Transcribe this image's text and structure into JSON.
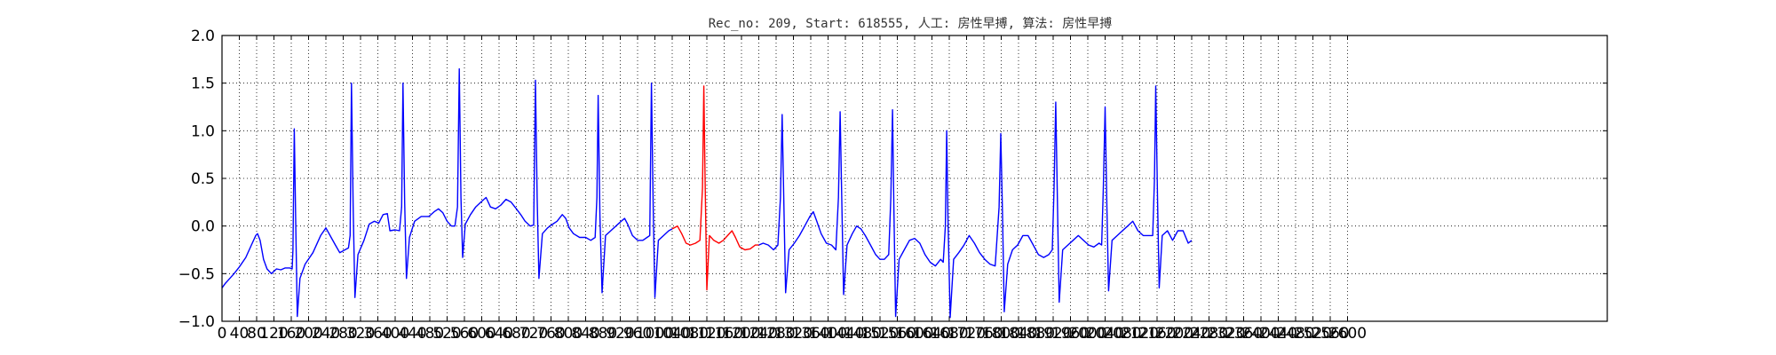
{
  "chart_data": {
    "type": "line",
    "title": "Rec_no: 209, Start: 618555, 人工: 房性早搏, 算法: 房性早搏",
    "xlabel": "",
    "ylabel": "",
    "xlim": [
      0,
      3200
    ],
    "ylim": [
      -1.0,
      2.0
    ],
    "grid": true,
    "yticks": [
      "−1.0",
      "−0.5",
      "0.0",
      "0.5",
      "1.0",
      "1.5",
      "2.0"
    ],
    "ytick_values": [
      -1.0,
      -0.5,
      0.0,
      0.5,
      1.0,
      1.5,
      2.0
    ],
    "xticks": [
      "0",
      "40",
      "80",
      "120",
      "160",
      "200",
      "240",
      "280",
      "320",
      "360",
      "400",
      "440",
      "480",
      "520",
      "560",
      "600",
      "640",
      "680",
      "720",
      "760",
      "800",
      "840",
      "880",
      "920",
      "960",
      "1000",
      "1040",
      "1080",
      "1120",
      "1160",
      "1200",
      "1240",
      "1280",
      "1320",
      "1360",
      "1400",
      "1440",
      "1480",
      "1520",
      "1560",
      "1600",
      "1640",
      "1680",
      "1720",
      "1760",
      "1800",
      "1840",
      "1880",
      "1920",
      "1960",
      "2000",
      "2040",
      "2080",
      "2120",
      "2160",
      "2200",
      "2240",
      "2280",
      "2320",
      "2360",
      "2400",
      "2440",
      "2480",
      "2520",
      "2560",
      "2600"
    ],
    "xtick_values": [
      0,
      40,
      80,
      120,
      160,
      200,
      240,
      280,
      320,
      360,
      400,
      440,
      480,
      520,
      560,
      600,
      640,
      680,
      720,
      760,
      800,
      840,
      880,
      920,
      960,
      1000,
      1040,
      1080,
      1120,
      1160,
      1200,
      1240,
      1280,
      1320,
      1360,
      1400,
      1440,
      1480,
      1520,
      1560,
      1600,
      1640,
      1680,
      1720,
      1760,
      1800,
      1840,
      1880,
      1920,
      1960,
      2000,
      2040,
      2080,
      2120,
      2160,
      2200,
      2240,
      2280,
      2320,
      2360,
      2400,
      2440,
      2480,
      2520,
      2560,
      2600
    ],
    "series": [
      {
        "color": "#0000ff",
        "points": [
          [
            0,
            -0.65
          ],
          [
            8,
            -0.6
          ],
          [
            18,
            -0.55
          ],
          [
            28,
            -0.5
          ],
          [
            40,
            -0.43
          ],
          [
            55,
            -0.33
          ],
          [
            68,
            -0.2
          ],
          [
            78,
            -0.1
          ],
          [
            82,
            -0.08
          ],
          [
            88,
            -0.15
          ],
          [
            96,
            -0.35
          ],
          [
            104,
            -0.45
          ],
          [
            114,
            -0.5
          ],
          [
            126,
            -0.45
          ],
          [
            136,
            -0.46
          ],
          [
            146,
            -0.44
          ],
          [
            156,
            -0.44
          ],
          [
            162,
            -0.45
          ],
          [
            164,
            -0.25
          ],
          [
            167,
            1.02
          ],
          [
            170,
            0.1
          ],
          [
            174,
            -0.95
          ],
          [
            180,
            -0.55
          ],
          [
            192,
            -0.4
          ],
          [
            210,
            -0.28
          ],
          [
            228,
            -0.1
          ],
          [
            240,
            -0.02
          ],
          [
            252,
            -0.12
          ],
          [
            262,
            -0.2
          ],
          [
            272,
            -0.28
          ],
          [
            284,
            -0.25
          ],
          [
            292,
            -0.23
          ],
          [
            296,
            -0.1
          ],
          [
            299,
            1.5
          ],
          [
            303,
            0.2
          ],
          [
            307,
            -0.75
          ],
          [
            314,
            -0.3
          ],
          [
            328,
            -0.15
          ],
          [
            340,
            0.02
          ],
          [
            352,
            0.05
          ],
          [
            362,
            0.03
          ],
          [
            372,
            0.12
          ],
          [
            382,
            0.13
          ],
          [
            388,
            -0.05
          ],
          [
            400,
            -0.04
          ],
          [
            410,
            -0.05
          ],
          [
            415,
            0.2
          ],
          [
            418,
            1.5
          ],
          [
            422,
            0.25
          ],
          [
            426,
            -0.55
          ],
          [
            433,
            -0.12
          ],
          [
            445,
            0.05
          ],
          [
            460,
            0.1
          ],
          [
            478,
            0.1
          ],
          [
            490,
            0.15
          ],
          [
            500,
            0.18
          ],
          [
            510,
            0.14
          ],
          [
            520,
            0.05
          ],
          [
            530,
            0.0
          ],
          [
            538,
            0.0
          ],
          [
            544,
            0.2
          ],
          [
            548,
            1.65
          ],
          [
            552,
            0.3
          ],
          [
            556,
            -0.33
          ],
          [
            562,
            0.02
          ],
          [
            574,
            0.12
          ],
          [
            586,
            0.2
          ],
          [
            598,
            0.25
          ],
          [
            610,
            0.3
          ],
          [
            620,
            0.2
          ],
          [
            632,
            0.18
          ],
          [
            644,
            0.22
          ],
          [
            656,
            0.28
          ],
          [
            668,
            0.25
          ],
          [
            680,
            0.18
          ],
          [
            690,
            0.12
          ],
          [
            700,
            0.05
          ],
          [
            712,
            0.0
          ],
          [
            720,
            0.01
          ],
          [
            724,
            1.53
          ],
          [
            728,
            0.3
          ],
          [
            732,
            -0.55
          ],
          [
            740,
            -0.08
          ],
          [
            752,
            -0.02
          ],
          [
            764,
            0.02
          ],
          [
            774,
            0.05
          ],
          [
            786,
            0.12
          ],
          [
            794,
            0.08
          ],
          [
            802,
            -0.02
          ],
          [
            812,
            -0.08
          ],
          [
            826,
            -0.12
          ],
          [
            840,
            -0.12
          ],
          [
            852,
            -0.15
          ],
          [
            862,
            -0.12
          ],
          [
            866,
            0.3
          ],
          [
            869,
            1.37
          ],
          [
            873,
            0.1
          ],
          [
            878,
            -0.7
          ],
          [
            886,
            -0.1
          ],
          [
            898,
            -0.05
          ],
          [
            910,
            0.0
          ],
          [
            922,
            0.05
          ],
          [
            930,
            0.08
          ],
          [
            938,
            0.01
          ],
          [
            948,
            -0.1
          ],
          [
            960,
            -0.15
          ],
          [
            972,
            -0.15
          ],
          [
            982,
            -0.12
          ],
          [
            988,
            -0.1
          ],
          [
            992,
            1.5
          ],
          [
            996,
            0.2
          ],
          [
            1000,
            -0.75
          ],
          [
            1008,
            -0.15
          ],
          [
            1020,
            -0.1
          ],
          [
            1032,
            -0.05
          ],
          [
            1040,
            -0.03
          ]
        ]
      },
      {
        "color": "#ff0000",
        "points": [
          [
            1040,
            -0.03
          ],
          [
            1052,
            0.0
          ],
          [
            1062,
            -0.08
          ],
          [
            1072,
            -0.18
          ],
          [
            1082,
            -0.2
          ],
          [
            1094,
            -0.18
          ],
          [
            1104,
            -0.15
          ],
          [
            1110,
            0.4
          ],
          [
            1113,
            1.47
          ],
          [
            1116,
            0.5
          ],
          [
            1120,
            -0.67
          ],
          [
            1126,
            -0.1
          ],
          [
            1136,
            -0.15
          ],
          [
            1148,
            -0.18
          ],
          [
            1158,
            -0.15
          ],
          [
            1168,
            -0.1
          ],
          [
            1178,
            -0.05
          ],
          [
            1186,
            -0.12
          ],
          [
            1196,
            -0.22
          ],
          [
            1208,
            -0.25
          ],
          [
            1220,
            -0.24
          ],
          [
            1232,
            -0.2
          ],
          [
            1240,
            -0.2
          ]
        ]
      },
      {
        "color": "#0000ff",
        "points": [
          [
            1240,
            -0.2
          ],
          [
            1250,
            -0.18
          ],
          [
            1262,
            -0.2
          ],
          [
            1274,
            -0.25
          ],
          [
            1284,
            -0.2
          ],
          [
            1290,
            0.3
          ],
          [
            1294,
            1.17
          ],
          [
            1298,
            0.2
          ],
          [
            1302,
            -0.7
          ],
          [
            1310,
            -0.25
          ],
          [
            1322,
            -0.18
          ],
          [
            1334,
            -0.1
          ],
          [
            1346,
            0.0
          ],
          [
            1358,
            0.1
          ],
          [
            1366,
            0.15
          ],
          [
            1374,
            0.05
          ],
          [
            1384,
            -0.08
          ],
          [
            1396,
            -0.18
          ],
          [
            1408,
            -0.2
          ],
          [
            1418,
            -0.25
          ],
          [
            1424,
            0.3
          ],
          [
            1428,
            1.2
          ],
          [
            1432,
            0.2
          ],
          [
            1436,
            -0.72
          ],
          [
            1444,
            -0.2
          ],
          [
            1456,
            -0.08
          ],
          [
            1466,
            0.0
          ],
          [
            1476,
            -0.03
          ],
          [
            1486,
            -0.1
          ],
          [
            1498,
            -0.2
          ],
          [
            1510,
            -0.3
          ],
          [
            1520,
            -0.35
          ],
          [
            1530,
            -0.35
          ],
          [
            1540,
            -0.3
          ],
          [
            1545,
            0.3
          ],
          [
            1549,
            1.22
          ],
          [
            1552,
            0.2
          ],
          [
            1556,
            -0.95
          ],
          [
            1564,
            -0.35
          ],
          [
            1576,
            -0.25
          ],
          [
            1588,
            -0.15
          ],
          [
            1600,
            -0.13
          ],
          [
            1612,
            -0.18
          ],
          [
            1624,
            -0.3
          ],
          [
            1636,
            -0.38
          ],
          [
            1648,
            -0.42
          ],
          [
            1660,
            -0.35
          ],
          [
            1666,
            -0.38
          ],
          [
            1671,
            0.0
          ],
          [
            1674,
            1.0
          ],
          [
            1677,
            0.1
          ],
          [
            1682,
            -0.96
          ],
          [
            1690,
            -0.35
          ],
          [
            1702,
            -0.28
          ],
          [
            1714,
            -0.2
          ],
          [
            1726,
            -0.1
          ],
          [
            1738,
            -0.18
          ],
          [
            1750,
            -0.28
          ],
          [
            1762,
            -0.35
          ],
          [
            1774,
            -0.4
          ],
          [
            1786,
            -0.42
          ],
          [
            1795,
            0.2
          ],
          [
            1799,
            0.97
          ],
          [
            1803,
            0.1
          ],
          [
            1807,
            -0.9
          ],
          [
            1815,
            -0.4
          ],
          [
            1826,
            -0.25
          ],
          [
            1838,
            -0.2
          ],
          [
            1850,
            -0.1
          ],
          [
            1862,
            -0.1
          ],
          [
            1874,
            -0.2
          ],
          [
            1886,
            -0.3
          ],
          [
            1898,
            -0.33
          ],
          [
            1910,
            -0.3
          ],
          [
            1918,
            -0.25
          ],
          [
            1922,
            0.4
          ],
          [
            1926,
            1.3
          ],
          [
            1930,
            0.2
          ],
          [
            1934,
            -0.8
          ],
          [
            1942,
            -0.25
          ],
          [
            1954,
            -0.2
          ],
          [
            1966,
            -0.15
          ],
          [
            1978,
            -0.1
          ],
          [
            1990,
            -0.15
          ],
          [
            2002,
            -0.2
          ],
          [
            2014,
            -0.22
          ],
          [
            2026,
            -0.18
          ],
          [
            2032,
            -0.2
          ],
          [
            2036,
            0.4
          ],
          [
            2040,
            1.25
          ],
          [
            2044,
            0.2
          ],
          [
            2048,
            -0.68
          ],
          [
            2056,
            -0.15
          ],
          [
            2068,
            -0.1
          ],
          [
            2080,
            -0.05
          ],
          [
            2092,
            0.0
          ],
          [
            2104,
            0.05
          ],
          [
            2116,
            -0.05
          ],
          [
            2128,
            -0.1
          ],
          [
            2140,
            -0.1
          ],
          [
            2150,
            -0.1
          ],
          [
            2154,
            0.5
          ],
          [
            2157,
            1.47
          ],
          [
            2161,
            0.3
          ],
          [
            2165,
            -0.65
          ],
          [
            2172,
            -0.1
          ],
          [
            2184,
            -0.05
          ],
          [
            2196,
            -0.15
          ],
          [
            2208,
            -0.05
          ],
          [
            2220,
            -0.05
          ],
          [
            2232,
            -0.18
          ],
          [
            2240,
            -0.15
          ]
        ]
      }
    ]
  }
}
